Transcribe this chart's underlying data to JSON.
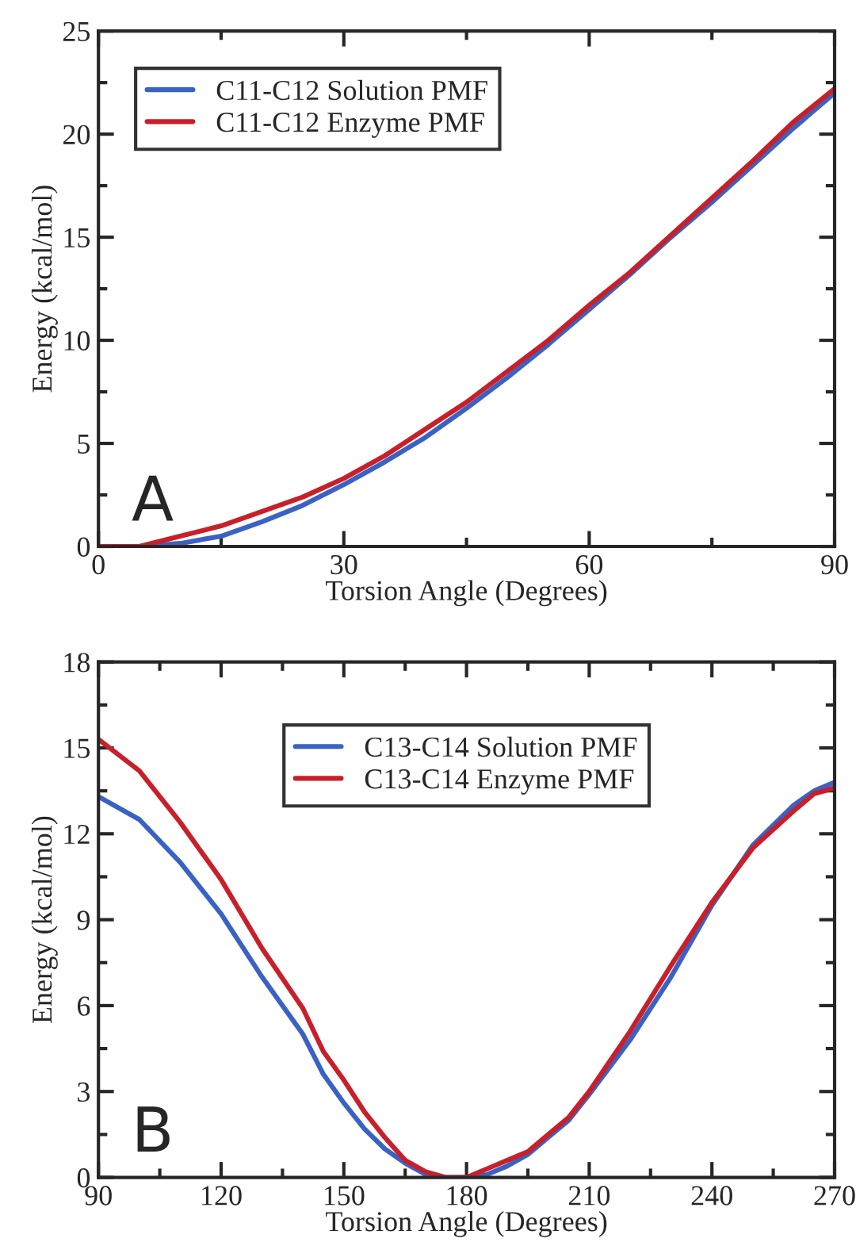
{
  "chart_data": [
    {
      "type": "line",
      "xlabel": "Torsion Angle (Degrees)",
      "ylabel": "Energy (kcal/mol)",
      "annotations": [
        "A"
      ],
      "legend": "top left",
      "x": [
        0,
        5,
        10,
        15,
        20,
        25,
        30,
        35,
        40,
        45,
        50,
        55,
        60,
        65,
        70,
        75,
        80,
        85,
        90
      ],
      "series": [
        {
          "name": "C11-C12 Solution PMF",
          "color": "#3a62c4",
          "values": [
            0,
            0,
            0.15,
            0.5,
            1.2,
            2.0,
            3.0,
            4.1,
            5.3,
            6.7,
            8.2,
            9.8,
            11.5,
            13.2,
            15.0,
            16.7,
            18.5,
            20.3,
            22.0
          ]
        },
        {
          "name": "C11-C12 Enzyme PMF",
          "color": "#c8202a",
          "values": [
            0,
            0,
            0.5,
            1.0,
            1.7,
            2.4,
            3.3,
            4.4,
            5.7,
            7.0,
            8.5,
            10.0,
            11.7,
            13.3,
            15.1,
            16.9,
            18.7,
            20.6,
            22.2
          ]
        }
      ],
      "xlim": [
        0,
        90
      ],
      "xticks": [
        0,
        30,
        60,
        90
      ],
      "ylim": [
        0,
        25
      ],
      "yticks": [
        0,
        5,
        10,
        15,
        20,
        25
      ]
    },
    {
      "type": "line",
      "xlabel": "Torsion Angle (Degrees)",
      "ylabel": "Energy (kcal/mol)",
      "annotations": [
        "B"
      ],
      "legend": "top",
      "x": [
        90,
        100,
        110,
        120,
        130,
        140,
        145,
        150,
        155,
        160,
        165,
        170,
        175,
        180,
        185,
        190,
        195,
        200,
        205,
        210,
        220,
        230,
        240,
        250,
        260,
        265,
        270
      ],
      "series": [
        {
          "name": "C13-C14 Solution PMF",
          "color": "#3a62c4",
          "values": [
            13.3,
            12.5,
            11.0,
            9.2,
            7.0,
            5.0,
            3.6,
            2.6,
            1.7,
            1.0,
            0.5,
            0.1,
            0,
            0,
            0.1,
            0.4,
            0.8,
            1.4,
            2.0,
            2.9,
            4.8,
            7.0,
            9.5,
            11.6,
            13.0,
            13.5,
            13.8
          ]
        },
        {
          "name": "C13-C14 Enzyme PMF",
          "color": "#c8202a",
          "values": [
            15.3,
            14.2,
            12.4,
            10.4,
            8.0,
            5.9,
            4.4,
            3.4,
            2.3,
            1.4,
            0.6,
            0.2,
            0,
            0,
            0.3,
            0.6,
            0.9,
            1.5,
            2.1,
            3.0,
            5.1,
            7.4,
            9.6,
            11.5,
            12.8,
            13.4,
            13.6
          ]
        }
      ],
      "xlim": [
        90,
        270
      ],
      "xticks": [
        90,
        120,
        150,
        180,
        210,
        240,
        270
      ],
      "ylim": [
        0,
        18
      ],
      "yticks": [
        0,
        3,
        6,
        9,
        12,
        15,
        18
      ]
    }
  ]
}
